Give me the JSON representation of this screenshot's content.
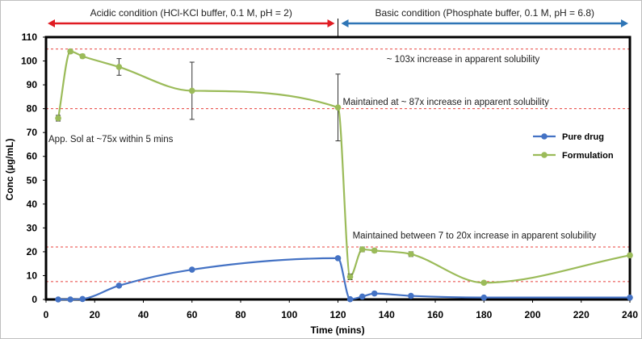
{
  "chart_data": {
    "type": "line",
    "xlabel": "Time (mins)",
    "ylabel": "Conc (µg/mL)",
    "xlim": [
      0,
      240
    ],
    "ylim": [
      0,
      110
    ],
    "xticks": [
      "0",
      "20",
      "40",
      "60",
      "80",
      "100",
      "120",
      "140",
      "160",
      "180",
      "200",
      "220",
      "240"
    ],
    "yticks": [
      "0",
      "10",
      "20",
      "30",
      "40",
      "50",
      "60",
      "70",
      "80",
      "90",
      "100",
      "110"
    ],
    "grid": false,
    "legend_position": "right",
    "series": [
      {
        "name": "Pure drug",
        "color": "#4472c4",
        "points": [
          [
            5,
            0
          ],
          [
            10,
            0
          ],
          [
            15,
            0.2
          ],
          [
            30,
            5.8
          ],
          [
            60,
            12.5
          ],
          [
            120,
            17.3
          ],
          [
            125,
            0.1
          ],
          [
            130,
            1.2
          ],
          [
            135,
            2.5
          ],
          [
            150,
            1.5
          ],
          [
            180,
            0.8
          ],
          [
            240,
            0.8
          ]
        ]
      },
      {
        "name": "Formulation",
        "color": "#9bbb59",
        "points": [
          [
            5,
            76
          ],
          [
            10,
            104
          ],
          [
            15,
            102
          ],
          [
            30,
            97.5
          ],
          [
            60,
            87.5
          ],
          [
            120,
            80.5
          ],
          [
            125,
            9.5
          ],
          [
            130,
            21
          ],
          [
            135,
            20.5
          ],
          [
            150,
            19
          ],
          [
            180,
            7
          ],
          [
            240,
            18.5
          ]
        ],
        "error_bars": [
          {
            "x": 5,
            "y": 76,
            "err": 1.2
          },
          {
            "x": 10,
            "y": 104,
            "err": 0.8
          },
          {
            "x": 15,
            "y": 102,
            "err": 0.8
          },
          {
            "x": 30,
            "y": 97.5,
            "err": 3.5
          },
          {
            "x": 60,
            "y": 87.5,
            "err": 12
          },
          {
            "x": 120,
            "y": 80.5,
            "err": 14
          },
          {
            "x": 125,
            "y": 9.5,
            "err": 1.2
          },
          {
            "x": 130,
            "y": 21,
            "err": 1
          },
          {
            "x": 135,
            "y": 20.5,
            "err": 0.8
          },
          {
            "x": 150,
            "y": 19,
            "err": 1
          },
          {
            "x": 180,
            "y": 7,
            "err": 0.6
          },
          {
            "x": 240,
            "y": 18.5,
            "err": 0.8
          }
        ]
      }
    ],
    "reference_lines": [
      {
        "y": 105,
        "color": "#e8413c"
      },
      {
        "y": 80,
        "color": "#e8413c"
      },
      {
        "y": 22,
        "color": "#e8413c"
      },
      {
        "y": 7.5,
        "color": "#e8413c"
      }
    ],
    "annotations": [
      {
        "text": "~ 103x increase in apparent solubility",
        "x": 140,
        "y": 99.5
      },
      {
        "text": "Maintained at ~ 87x increase in apparent solubility",
        "x": 122,
        "y": 81.5
      },
      {
        "text": "App. Sol at ~75x within 5 mins",
        "x": 1,
        "y": 66
      },
      {
        "text": "Maintained between 7 to 20x increase in apparent solubility",
        "x": 126,
        "y": 25.5
      }
    ],
    "conditions": [
      {
        "label": "Acidic condition (HCl-KCl buffer, 0.1 M, pH = 2)",
        "x_start": 0,
        "x_end": 120,
        "color": "#e01b22"
      },
      {
        "label": "Basic condition (Phosphate buffer, 0.1 M, pH = 6.8)",
        "x_start": 120,
        "x_end": 240,
        "color": "#2e75b6"
      }
    ]
  }
}
